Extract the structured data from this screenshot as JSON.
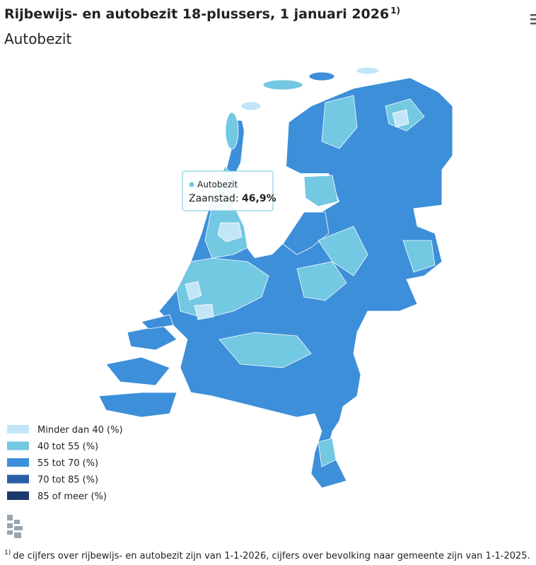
{
  "header": {
    "title": "Rijbewijs- en autobezit 18-plussers, 1 januari 2026",
    "title_note": "1)",
    "subtitle": "Autobezit"
  },
  "tooltip": {
    "series": "Autobezit",
    "region": "Zaanstad:",
    "value": "46,9%"
  },
  "legend": [
    {
      "label": "Minder dan 40 (%)",
      "color": "#c2e6f8"
    },
    {
      "label": "40 tot 55 (%)",
      "color": "#73c8e2"
    },
    {
      "label": "55 tot 70 (%)",
      "color": "#3d8fd9"
    },
    {
      "label": "70 tot 85 (%)",
      "color": "#2a5ea8"
    },
    {
      "label": "85 of meer (%)",
      "color": "#1c3a6b"
    }
  ],
  "footnote": {
    "note": "1)",
    "text": "de cijfers over rijbewijs- en autobezit zijn van 1-1-2026, cijfers over bevolking naar gemeente zijn van 1-1-2025."
  }
}
